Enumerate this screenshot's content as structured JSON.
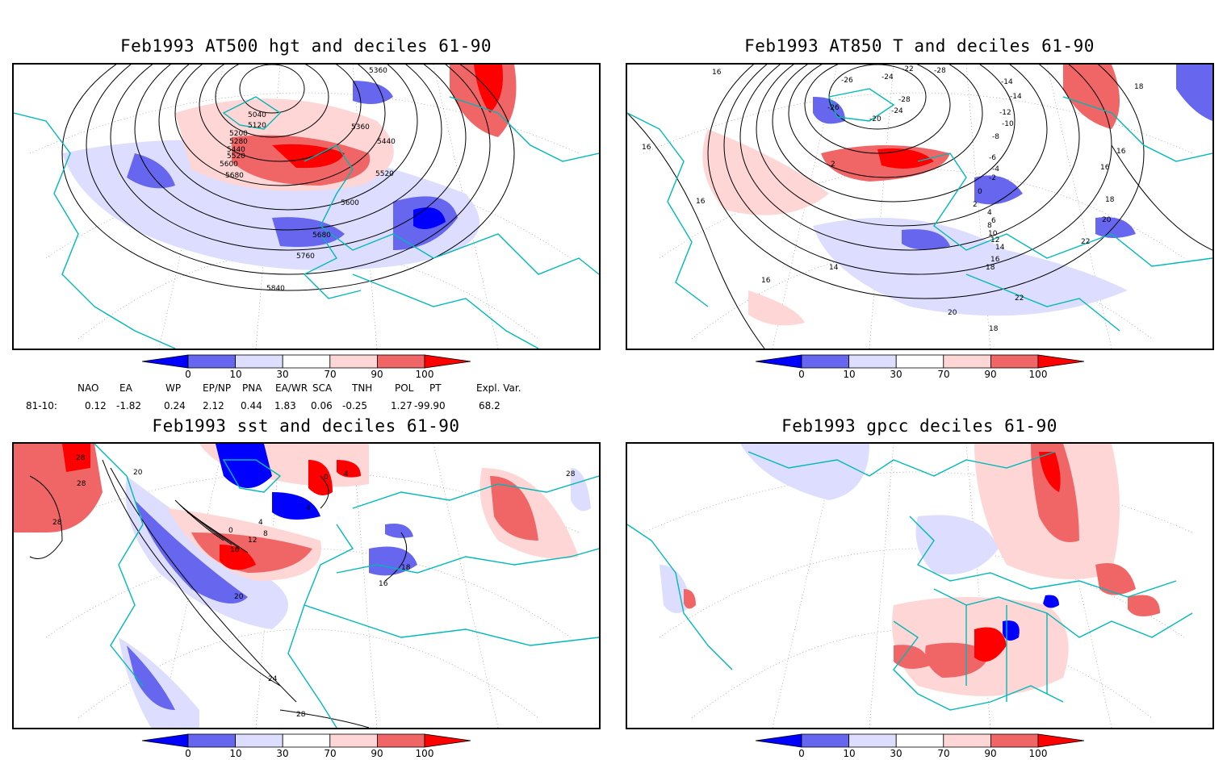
{
  "panels": {
    "p1": {
      "title": "Feb1993 AT500 hgt and deciles 61-90"
    },
    "p2": {
      "title": "Feb1993 AT850 T and deciles 61-90"
    },
    "p3": {
      "title": "Feb1993 sst and deciles 61-90"
    },
    "p4": {
      "title": "Feb1993 gpcc deciles 61-90"
    }
  },
  "colorbar": {
    "ticks": [
      "0",
      "10",
      "30",
      "70",
      "90",
      "100"
    ],
    "colors": [
      "#0000ff",
      "#6666ee",
      "#ddddff",
      "#ffffff",
      "#ffd6d6",
      "#f06666",
      "#ff0000"
    ]
  },
  "contour_labels": {
    "p1": [
      "5040",
      "5120",
      "5200",
      "5280",
      "5360",
      "5440",
      "5520",
      "5600",
      "5680",
      "5440",
      "5520",
      "5360",
      "5600",
      "5680",
      "5760",
      "5840"
    ],
    "p2": [
      "16",
      "16",
      "16",
      "14",
      "16",
      "18",
      "22",
      "20",
      "18",
      "-26",
      "-24",
      "-26",
      "-28",
      "-20",
      "-24",
      "-22",
      "-28",
      "-14",
      "-14",
      "-12",
      "-10",
      "-8",
      "-6",
      "-4",
      "-2",
      "0",
      "2",
      "4",
      "6",
      "8",
      "10",
      "12",
      "14",
      "16",
      "18",
      "20",
      "22",
      "16",
      "16",
      "18",
      "2"
    ],
    "p3": [
      "28",
      "28",
      "28",
      "28",
      "20",
      "0",
      "4",
      "8",
      "12",
      "16",
      "20",
      "24",
      "28",
      "16",
      "18",
      "4",
      "0",
      "4"
    ]
  },
  "indices": {
    "headers": [
      "NAO",
      "EA",
      "WP",
      "EP/NP",
      "PNA",
      "EA/WR",
      "SCA",
      "TNH",
      "POL",
      "PT",
      "Expl. Var."
    ],
    "row_label": "81-10:",
    "values": [
      "0.12",
      "-1.82",
      "0.24",
      "2.12",
      "0.44",
      "1.83",
      "0.06",
      "-0.25",
      "1.27",
      "-99.90",
      "68.2"
    ]
  }
}
